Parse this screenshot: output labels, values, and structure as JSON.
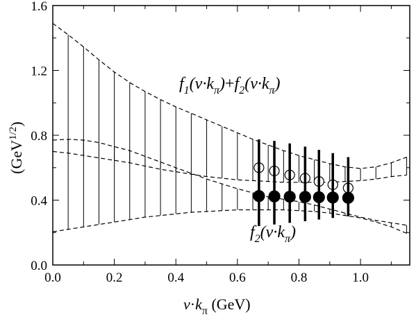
{
  "chart_data": {
    "type": "line",
    "xlabel_parts": {
      "v": "v",
      "dot": "·",
      "k": "k",
      "sub": "π",
      "unit": " (GeV)"
    },
    "ylabel_parts": {
      "main": "(GeV",
      "sup": "1/2",
      "close": ")"
    },
    "xlim": [
      0.0,
      1.16
    ],
    "ylim": [
      0.0,
      1.6
    ],
    "x_ticks": [
      {
        "value": 0.0,
        "label": "0.0"
      },
      {
        "value": 0.2,
        "label": "0.2"
      },
      {
        "value": 0.4,
        "label": "0.4"
      },
      {
        "value": 0.6,
        "label": "0.6"
      },
      {
        "value": 0.8,
        "label": "0.8"
      },
      {
        "value": 1.0,
        "label": "1.0"
      }
    ],
    "y_ticks": [
      {
        "value": 0.0,
        "label": "0.0"
      },
      {
        "value": 0.4,
        "label": "0.4"
      },
      {
        "value": 0.8,
        "label": "0.8"
      },
      {
        "value": 1.2,
        "label": "1.2"
      },
      {
        "value": 1.6,
        "label": "1.6"
      }
    ],
    "annotations": {
      "sum": {
        "f1": "f",
        "f1_sub": "1",
        "f1_arg": "(v·k",
        "f1_arg_sub": "π",
        "f1_close": ")",
        "plus": "+",
        "f2": "f",
        "f2_sub": "2",
        "f2_arg": "(v·k",
        "f2_arg_sub": "π",
        "f2_close": ")"
      },
      "f2": {
        "f": "f",
        "sub": "2",
        "arg": "(v·k",
        "arg_sub": "π",
        "close": ")"
      }
    },
    "bands": [
      {
        "name": "sum-band",
        "upper": [
          [
            0.0,
            1.49
          ],
          [
            0.05,
            1.42
          ],
          [
            0.1,
            1.345
          ],
          [
            0.15,
            1.265
          ],
          [
            0.2,
            1.19
          ],
          [
            0.25,
            1.125
          ],
          [
            0.3,
            1.07
          ],
          [
            0.35,
            1.02
          ],
          [
            0.4,
            0.975
          ],
          [
            0.45,
            0.935
          ],
          [
            0.5,
            0.895
          ],
          [
            0.55,
            0.855
          ],
          [
            0.6,
            0.815
          ],
          [
            0.65,
            0.775
          ],
          [
            0.7,
            0.74
          ],
          [
            0.75,
            0.705
          ],
          [
            0.8,
            0.675
          ],
          [
            0.85,
            0.65
          ],
          [
            0.9,
            0.625
          ],
          [
            0.95,
            0.605
          ],
          [
            1.0,
            0.595
          ],
          [
            1.05,
            0.605
          ],
          [
            1.1,
            0.63
          ],
          [
            1.15,
            0.665
          ]
        ],
        "lower": [
          [
            0.0,
            0.7
          ],
          [
            0.05,
            0.69
          ],
          [
            0.1,
            0.675
          ],
          [
            0.15,
            0.66
          ],
          [
            0.2,
            0.645
          ],
          [
            0.25,
            0.63
          ],
          [
            0.3,
            0.61
          ],
          [
            0.35,
            0.59
          ],
          [
            0.4,
            0.575
          ],
          [
            0.45,
            0.56
          ],
          [
            0.5,
            0.545
          ],
          [
            0.55,
            0.535
          ],
          [
            0.6,
            0.525
          ],
          [
            0.65,
            0.52
          ],
          [
            0.7,
            0.515
          ],
          [
            0.75,
            0.51
          ],
          [
            0.8,
            0.51
          ],
          [
            0.85,
            0.51
          ],
          [
            0.9,
            0.51
          ],
          [
            0.95,
            0.515
          ],
          [
            1.0,
            0.52
          ],
          [
            1.05,
            0.53
          ],
          [
            1.1,
            0.545
          ],
          [
            1.15,
            0.555
          ]
        ]
      },
      {
        "name": "f2-band",
        "upper": [
          [
            0.0,
            0.77
          ],
          [
            0.05,
            0.775
          ],
          [
            0.1,
            0.77
          ],
          [
            0.15,
            0.755
          ],
          [
            0.2,
            0.73
          ],
          [
            0.25,
            0.705
          ],
          [
            0.3,
            0.67
          ],
          [
            0.35,
            0.635
          ],
          [
            0.4,
            0.6
          ],
          [
            0.45,
            0.565
          ],
          [
            0.5,
            0.53
          ],
          [
            0.55,
            0.5
          ],
          [
            0.6,
            0.47
          ],
          [
            0.65,
            0.445
          ],
          [
            0.7,
            0.42
          ],
          [
            0.75,
            0.405
          ],
          [
            0.8,
            0.39
          ],
          [
            0.85,
            0.37
          ],
          [
            0.9,
            0.345
          ],
          [
            0.95,
            0.32
          ],
          [
            1.0,
            0.295
          ],
          [
            1.05,
            0.275
          ],
          [
            1.1,
            0.26
          ],
          [
            1.15,
            0.245
          ]
        ],
        "lower": [
          [
            0.0,
            0.205
          ],
          [
            0.05,
            0.22
          ],
          [
            0.1,
            0.235
          ],
          [
            0.15,
            0.25
          ],
          [
            0.2,
            0.265
          ],
          [
            0.25,
            0.28
          ],
          [
            0.3,
            0.295
          ],
          [
            0.35,
            0.305
          ],
          [
            0.4,
            0.315
          ],
          [
            0.45,
            0.325
          ],
          [
            0.5,
            0.33
          ],
          [
            0.55,
            0.335
          ],
          [
            0.6,
            0.34
          ],
          [
            0.65,
            0.34
          ],
          [
            0.7,
            0.34
          ],
          [
            0.75,
            0.34
          ],
          [
            0.8,
            0.335
          ],
          [
            0.85,
            0.33
          ],
          [
            0.9,
            0.32
          ],
          [
            0.95,
            0.305
          ],
          [
            1.0,
            0.29
          ],
          [
            1.05,
            0.265
          ],
          [
            1.1,
            0.235
          ],
          [
            1.15,
            0.195
          ]
        ]
      }
    ],
    "hatch_x": [
      0.0,
      0.05,
      0.1,
      0.15,
      0.2,
      0.25,
      0.3,
      0.35,
      0.4,
      0.45,
      0.5,
      0.55,
      0.6,
      0.65,
      0.7,
      0.75,
      0.8,
      0.85,
      0.9,
      0.95,
      1.0,
      1.05,
      1.1,
      1.15
    ],
    "series": [
      {
        "marker": "open-circle",
        "points": [
          {
            "x": 0.67,
            "y": 0.6
          },
          {
            "x": 0.72,
            "y": 0.58
          },
          {
            "x": 0.77,
            "y": 0.555
          },
          {
            "x": 0.82,
            "y": 0.535
          },
          {
            "x": 0.865,
            "y": 0.515
          },
          {
            "x": 0.91,
            "y": 0.495
          },
          {
            "x": 0.96,
            "y": 0.475
          }
        ]
      },
      {
        "marker": "filled-circle",
        "points": [
          {
            "x": 0.67,
            "y": 0.425,
            "ylo": 0.24,
            "yhi": 0.775
          },
          {
            "x": 0.72,
            "y": 0.423,
            "ylo": 0.25,
            "yhi": 0.765
          },
          {
            "x": 0.77,
            "y": 0.421,
            "ylo": 0.26,
            "yhi": 0.75
          },
          {
            "x": 0.82,
            "y": 0.42,
            "ylo": 0.27,
            "yhi": 0.73
          },
          {
            "x": 0.865,
            "y": 0.418,
            "ylo": 0.28,
            "yhi": 0.71
          },
          {
            "x": 0.91,
            "y": 0.416,
            "ylo": 0.29,
            "yhi": 0.69
          },
          {
            "x": 0.96,
            "y": 0.414,
            "ylo": 0.3,
            "yhi": 0.665
          }
        ]
      }
    ],
    "grid": false
  }
}
